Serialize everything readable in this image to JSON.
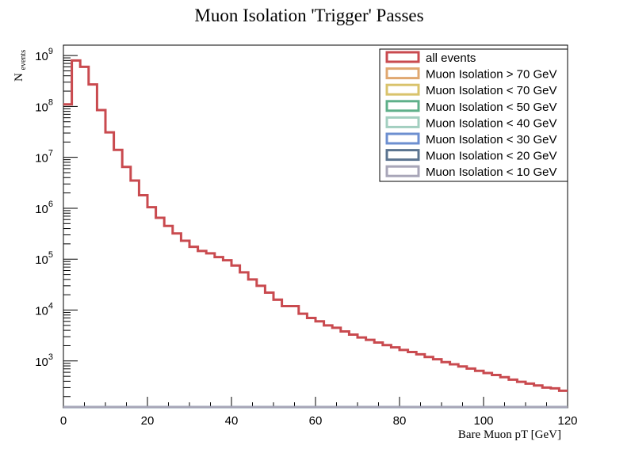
{
  "chart_data": {
    "type": "line",
    "title": "Muon Isolation 'Trigger' Passes",
    "xlabel": "Bare Muon pT [GeV]",
    "ylabel_main": "N",
    "ylabel_sub": "events",
    "xlim": [
      0,
      120
    ],
    "ylim": [
      120,
      1600000000
    ],
    "yscale": "log",
    "grid": false,
    "legend_position": "top-right",
    "x_ticks": [
      0,
      20,
      40,
      60,
      80,
      100,
      120
    ],
    "x_tick_labels": [
      "0",
      "20",
      "40",
      "60",
      "80",
      "100",
      "120"
    ],
    "y_ticks": [
      1000,
      10000,
      100000,
      1000000,
      10000000,
      100000000,
      1000000000
    ],
    "y_tick_base": "10",
    "y_tick_exponents": [
      "3",
      "4",
      "5",
      "6",
      "7",
      "8",
      "9"
    ],
    "bin_width": 2,
    "series": [
      {
        "name": "all events",
        "color": "#c94a4f",
        "values": [
          110000000,
          800000000,
          600000000,
          270000000,
          85000000,
          31000000,
          14000000,
          6500000,
          3500000,
          1800000,
          1050000,
          650000,
          450000,
          320000,
          230000,
          175000,
          145000,
          130000,
          110000,
          95000,
          75000,
          55000,
          40000,
          30000,
          22000,
          16000,
          12000,
          12000,
          8500,
          7000,
          6000,
          5000,
          4500,
          3800,
          3300,
          2900,
          2600,
          2300,
          2050,
          1850,
          1650,
          1500,
          1350,
          1200,
          1080,
          950,
          860,
          780,
          710,
          640,
          580,
          530,
          480,
          430,
          390,
          360,
          330,
          300,
          290,
          260
        ]
      },
      {
        "name": "Muon Isolation > 70 GeV",
        "color": "#e0a870",
        "values": []
      },
      {
        "name": "Muon Isolation < 70 GeV",
        "color": "#d9c36c",
        "values": []
      },
      {
        "name": "Muon Isolation < 50 GeV",
        "color": "#5fb08a",
        "values": []
      },
      {
        "name": "Muon Isolation < 40 GeV",
        "color": "#a3cfc0",
        "values": []
      },
      {
        "name": "Muon Isolation < 30 GeV",
        "color": "#6d8fd0",
        "values": []
      },
      {
        "name": "Muon Isolation < 20 GeV",
        "color": "#5b7490",
        "values": []
      },
      {
        "name": "Muon Isolation < 10 GeV",
        "color": "#a8a6b8",
        "values": []
      }
    ]
  }
}
